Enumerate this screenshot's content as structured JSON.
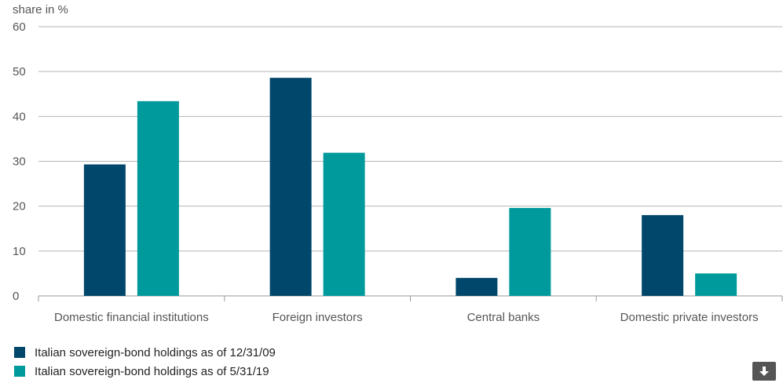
{
  "chart_data": {
    "type": "bar",
    "ylabel": "share in %",
    "xlabel": "",
    "ylim": [
      0,
      60
    ],
    "yticks": [
      0,
      10,
      20,
      30,
      40,
      50,
      60
    ],
    "grid": true,
    "legend_placement": "bottom-left",
    "categories": [
      "Domestic financial institutions",
      "Foreign investors",
      "Central banks",
      "Domestic private investors"
    ],
    "series": [
      {
        "name": "Italian sovereign-bond holdings as of 12/31/09",
        "color": "#00476b",
        "values": [
          29.3,
          48.6,
          4.0,
          18.0
        ]
      },
      {
        "name": "Italian sovereign-bond holdings as of 5/31/19",
        "color": "#009a9c",
        "values": [
          43.4,
          31.9,
          19.6,
          5.0
        ]
      }
    ]
  },
  "download_button": {
    "icon": "download-arrow-icon"
  }
}
